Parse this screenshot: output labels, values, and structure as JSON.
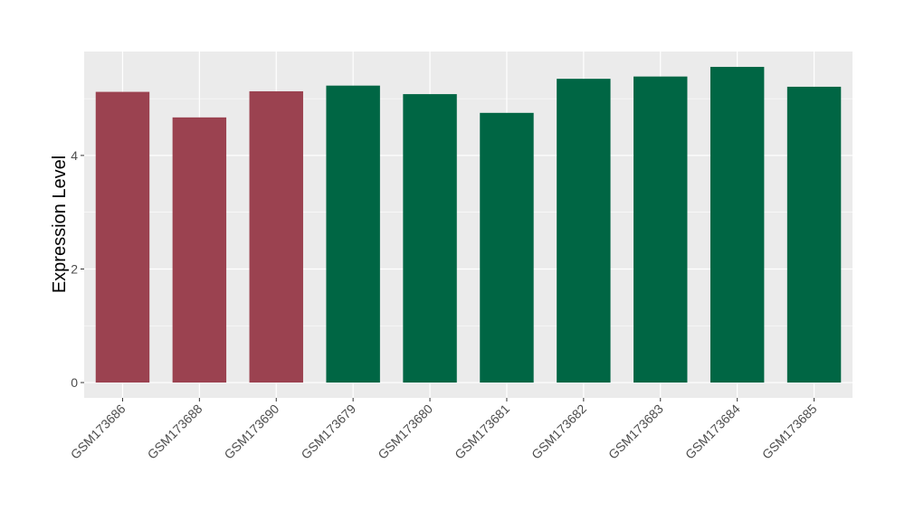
{
  "chart_data": {
    "type": "bar",
    "title": "",
    "xlabel": "",
    "ylabel": "Expression Level",
    "categories": [
      "GSM173686",
      "GSM173688",
      "GSM173690",
      "GSM173679",
      "GSM173680",
      "GSM173681",
      "GSM173682",
      "GSM173683",
      "GSM173684",
      "GSM173685"
    ],
    "values": [
      5.12,
      4.67,
      5.13,
      5.23,
      5.08,
      4.75,
      5.35,
      5.39,
      5.56,
      5.21
    ],
    "bar_colors": [
      "#9b4250",
      "#9b4250",
      "#9b4250",
      "#006644",
      "#006644",
      "#006644",
      "#006644",
      "#006644",
      "#006644",
      "#006644"
    ],
    "ylim": [
      -0.27,
      5.83
    ],
    "yticks": [
      0,
      2,
      4
    ],
    "grid": true,
    "panel_background": "#ebebeb"
  }
}
